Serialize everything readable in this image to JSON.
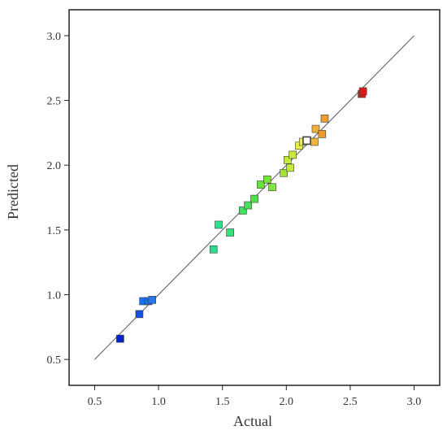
{
  "chart_data": {
    "type": "scatter",
    "title": "",
    "xlabel": "Actual",
    "ylabel": "Predicted",
    "xlim": [
      0.3,
      3.2
    ],
    "ylim": [
      0.3,
      3.2
    ],
    "xticks": [
      0.5,
      1.0,
      1.5,
      2.0,
      2.5,
      3.0
    ],
    "yticks": [
      0.5,
      1.0,
      1.5,
      2.0,
      2.5,
      3.0
    ],
    "xtick_labels": [
      "0.5",
      "1.0",
      "1.5",
      "2.0",
      "2.5",
      "3.0"
    ],
    "ytick_labels": [
      "0.5",
      "1.0",
      "1.5",
      "2.0",
      "2.5",
      "3.0"
    ],
    "reference_line": {
      "from": [
        0.5,
        0.5
      ],
      "to": [
        3.0,
        3.0
      ],
      "color": "#555555"
    },
    "grid": false,
    "legend": "none",
    "marker": "square",
    "points": [
      {
        "x": 0.7,
        "y": 0.66,
        "color": "#0022cc"
      },
      {
        "x": 0.85,
        "y": 0.85,
        "color": "#1450e6"
      },
      {
        "x": 0.88,
        "y": 0.95,
        "color": "#1e6ef0"
      },
      {
        "x": 0.92,
        "y": 0.95,
        "color": "#1e6ef0"
      },
      {
        "x": 0.95,
        "y": 0.96,
        "color": "#2478f0"
      },
      {
        "x": 1.43,
        "y": 1.35,
        "color": "#2ed88c"
      },
      {
        "x": 1.47,
        "y": 1.54,
        "color": "#2ee08a"
      },
      {
        "x": 1.56,
        "y": 1.48,
        "color": "#36e07a"
      },
      {
        "x": 1.66,
        "y": 1.65,
        "color": "#3ee060"
      },
      {
        "x": 1.7,
        "y": 1.69,
        "color": "#44e058"
      },
      {
        "x": 1.75,
        "y": 1.74,
        "color": "#52e04a"
      },
      {
        "x": 1.8,
        "y": 1.85,
        "color": "#66e43c"
      },
      {
        "x": 1.85,
        "y": 1.89,
        "color": "#74e43a"
      },
      {
        "x": 1.89,
        "y": 1.83,
        "color": "#80e43a"
      },
      {
        "x": 1.98,
        "y": 1.94,
        "color": "#a4e43a"
      },
      {
        "x": 2.01,
        "y": 2.04,
        "color": "#c0ec3a"
      },
      {
        "x": 2.03,
        "y": 1.98,
        "color": "#c4ec3a"
      },
      {
        "x": 2.05,
        "y": 2.08,
        "color": "#cce83a"
      },
      {
        "x": 2.1,
        "y": 2.15,
        "color": "#e8f03c"
      },
      {
        "x": 2.13,
        "y": 2.18,
        "color": "#eaf23c"
      },
      {
        "x": 2.16,
        "y": 2.19,
        "color": "#ffffff",
        "outline": "#444444"
      },
      {
        "x": 2.22,
        "y": 2.18,
        "color": "#f0b43a"
      },
      {
        "x": 2.23,
        "y": 2.28,
        "color": "#f2b03a"
      },
      {
        "x": 2.28,
        "y": 2.24,
        "color": "#f09a30"
      },
      {
        "x": 2.3,
        "y": 2.36,
        "color": "#f09a30"
      },
      {
        "x": 2.59,
        "y": 2.55,
        "color": "#d42020"
      },
      {
        "x": 2.6,
        "y": 2.57,
        "color": "#dd1a1a"
      }
    ]
  }
}
